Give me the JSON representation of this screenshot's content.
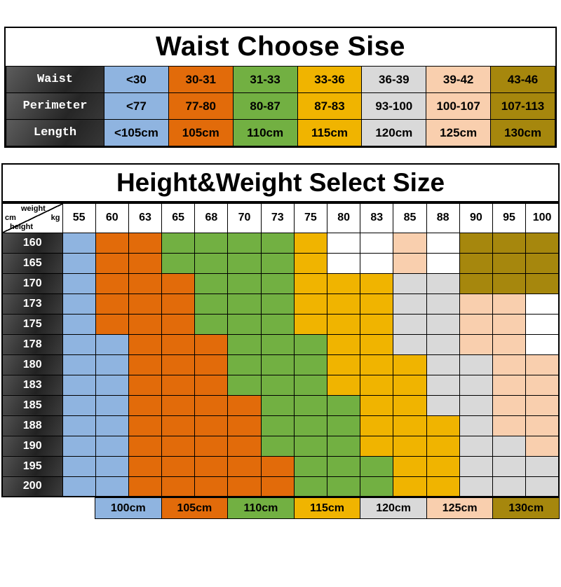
{
  "palette": {
    "blue": "#8fb4e0",
    "orange": "#e26b0a",
    "green": "#72b042",
    "yellow": "#f0b400",
    "gray": "#d9d9d9",
    "peach": "#f9cfae",
    "gold": "#a6870d",
    "white": "#ffffff"
  },
  "code_map": {
    "B": "blue",
    "O": "orange",
    "G": "green",
    "Y": "yellow",
    "S": "gray",
    "P": "peach",
    "D": "gold",
    "W": "white"
  },
  "chart_data": [
    {
      "type": "table",
      "title": "Waist Choose Sise",
      "row_headers": [
        "Waist",
        "Perimeter",
        "Length"
      ],
      "columns": [
        {
          "color": "blue",
          "values": [
            "<30",
            "<77",
            "<105cm"
          ]
        },
        {
          "color": "orange",
          "values": [
            "30-31",
            "77-80",
            "105cm"
          ]
        },
        {
          "color": "green",
          "values": [
            "31-33",
            "80-87",
            "110cm"
          ]
        },
        {
          "color": "yellow",
          "values": [
            "33-36",
            "87-83",
            "115cm"
          ]
        },
        {
          "color": "gray",
          "values": [
            "36-39",
            "93-100",
            "120cm"
          ]
        },
        {
          "color": "peach",
          "values": [
            "39-42",
            "100-107",
            "125cm"
          ]
        },
        {
          "color": "gold",
          "values": [
            "43-46",
            "107-113",
            "130cm"
          ]
        }
      ]
    },
    {
      "type": "table",
      "title": "Height&Weight Select Size",
      "corner": {
        "top_label": "weight",
        "top_unit": "kg",
        "bottom_unit": "cm",
        "bottom_label": "height"
      },
      "weight_headers": [
        "55",
        "60",
        "63",
        "65",
        "68",
        "70",
        "73",
        "75",
        "80",
        "83",
        "85",
        "88",
        "90",
        "95",
        "100"
      ],
      "height_headers": [
        "160",
        "165",
        "170",
        "173",
        "175",
        "178",
        "180",
        "183",
        "185",
        "188",
        "190",
        "195",
        "200"
      ],
      "grid": [
        [
          "B",
          "O",
          "O",
          "G",
          "G",
          "G",
          "G",
          "Y",
          "W",
          "W",
          "P",
          "W",
          "D",
          "D",
          "D"
        ],
        [
          "B",
          "O",
          "O",
          "G",
          "G",
          "G",
          "G",
          "Y",
          "W",
          "W",
          "P",
          "W",
          "D",
          "D",
          "D"
        ],
        [
          "B",
          "O",
          "O",
          "O",
          "G",
          "G",
          "G",
          "Y",
          "Y",
          "Y",
          "S",
          "S",
          "D",
          "D",
          "D"
        ],
        [
          "B",
          "O",
          "O",
          "O",
          "G",
          "G",
          "G",
          "Y",
          "Y",
          "Y",
          "S",
          "S",
          "P",
          "P",
          "W"
        ],
        [
          "B",
          "O",
          "O",
          "O",
          "G",
          "G",
          "G",
          "Y",
          "Y",
          "Y",
          "S",
          "S",
          "P",
          "P",
          "W"
        ],
        [
          "B",
          "B",
          "O",
          "O",
          "O",
          "G",
          "G",
          "G",
          "Y",
          "Y",
          "S",
          "S",
          "P",
          "P",
          "W"
        ],
        [
          "B",
          "B",
          "O",
          "O",
          "O",
          "G",
          "G",
          "G",
          "Y",
          "Y",
          "Y",
          "S",
          "S",
          "P",
          "P"
        ],
        [
          "B",
          "B",
          "O",
          "O",
          "O",
          "G",
          "G",
          "G",
          "Y",
          "Y",
          "Y",
          "S",
          "S",
          "P",
          "P"
        ],
        [
          "B",
          "B",
          "O",
          "O",
          "O",
          "O",
          "G",
          "G",
          "G",
          "Y",
          "Y",
          "S",
          "S",
          "P",
          "P"
        ],
        [
          "B",
          "B",
          "O",
          "O",
          "O",
          "O",
          "G",
          "G",
          "G",
          "Y",
          "Y",
          "Y",
          "S",
          "P",
          "P"
        ],
        [
          "B",
          "B",
          "O",
          "O",
          "O",
          "O",
          "G",
          "G",
          "G",
          "Y",
          "Y",
          "Y",
          "S",
          "S",
          "P"
        ],
        [
          "B",
          "B",
          "O",
          "O",
          "O",
          "O",
          "O",
          "G",
          "G",
          "G",
          "Y",
          "Y",
          "S",
          "S",
          "S"
        ],
        [
          "B",
          "B",
          "O",
          "O",
          "O",
          "O",
          "O",
          "G",
          "G",
          "G",
          "Y",
          "Y",
          "S",
          "S",
          "S"
        ]
      ],
      "legend": [
        {
          "label": "100cm",
          "color": "blue"
        },
        {
          "label": "105cm",
          "color": "orange"
        },
        {
          "label": "110cm",
          "color": "green"
        },
        {
          "label": "115cm",
          "color": "yellow"
        },
        {
          "label": "120cm",
          "color": "gray"
        },
        {
          "label": "125cm",
          "color": "peach"
        },
        {
          "label": "130cm",
          "color": "gold"
        }
      ]
    }
  ]
}
